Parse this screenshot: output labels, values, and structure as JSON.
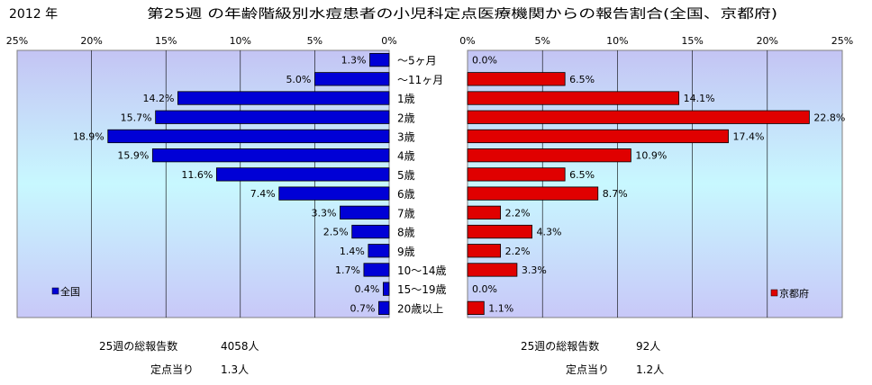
{
  "header": {
    "year": "2012 年",
    "title": "第25週 の年齢階級別水痘患者の小児科定点医療機関からの報告割合(全国、京都府)"
  },
  "age_groups": [
    "～5ヶ月",
    "～11ヶ月",
    "1歳",
    "2歳",
    "3歳",
    "4歳",
    "5歳",
    "6歳",
    "7歳",
    "8歳",
    "9歳",
    "10～14歳",
    "15～19歳",
    "20歳以上"
  ],
  "axis": {
    "left_ticks": [
      "25%",
      "20%",
      "15%",
      "10%",
      "5%",
      "0%"
    ],
    "right_ticks": [
      "0%",
      "5%",
      "10%",
      "15%",
      "20%",
      "25%"
    ]
  },
  "colors": {
    "national_bar": "#0000d6",
    "kyoto_bar": "#e00000",
    "plot_gradient_top": "#c4c4f4",
    "plot_gradient_mid": "#c8f8ff",
    "plot_gradient_bottom": "#c8c8f8"
  },
  "chart_data": [
    {
      "type": "bar",
      "orientation": "horizontal",
      "direction": "right-to-left",
      "title": "",
      "categories": [
        "～5ヶ月",
        "～11ヶ月",
        "1歳",
        "2歳",
        "3歳",
        "4歳",
        "5歳",
        "6歳",
        "7歳",
        "8歳",
        "9歳",
        "10～14歳",
        "15～19歳",
        "20歳以上"
      ],
      "series": [
        {
          "name": "全国",
          "values": [
            1.3,
            5.0,
            14.2,
            15.7,
            18.9,
            15.9,
            11.6,
            7.4,
            3.3,
            2.5,
            1.4,
            1.7,
            0.4,
            0.7
          ],
          "labels": [
            "1.3%",
            "5.0%",
            "14.2%",
            "15.7%",
            "18.9%",
            "15.9%",
            "11.6%",
            "7.4%",
            "3.3%",
            "2.5%",
            "1.4%",
            "1.7%",
            "0.4%",
            "0.7%"
          ]
        }
      ],
      "xlim": [
        0,
        25
      ],
      "legend": "bottom-left",
      "grid": true
    },
    {
      "type": "bar",
      "orientation": "horizontal",
      "direction": "left-to-right",
      "title": "",
      "categories": [
        "～5ヶ月",
        "～11ヶ月",
        "1歳",
        "2歳",
        "3歳",
        "4歳",
        "5歳",
        "6歳",
        "7歳",
        "8歳",
        "9歳",
        "10～14歳",
        "15～19歳",
        "20歳以上"
      ],
      "series": [
        {
          "name": "京都府",
          "values": [
            0.0,
            6.5,
            14.1,
            22.8,
            17.4,
            10.9,
            6.5,
            8.7,
            2.2,
            4.3,
            2.2,
            3.3,
            0.0,
            1.1
          ],
          "labels": [
            "0.0%",
            "6.5%",
            "14.1%",
            "22.8%",
            "17.4%",
            "10.9%",
            "6.5%",
            "8.7%",
            "2.2%",
            "4.3%",
            "2.2%",
            "3.3%",
            "0.0%",
            "1.1%"
          ]
        }
      ],
      "xlim": [
        0,
        25
      ],
      "legend": "bottom-right",
      "grid": true
    }
  ],
  "summary": {
    "national": {
      "total_label": "25週の総報告数",
      "total_value": "4058人",
      "per_label": "定点当り",
      "per_value": "1.3人"
    },
    "kyoto": {
      "total_label": "25週の総報告数",
      "total_value": "92人",
      "per_label": "定点当り",
      "per_value": "1.2人"
    }
  }
}
